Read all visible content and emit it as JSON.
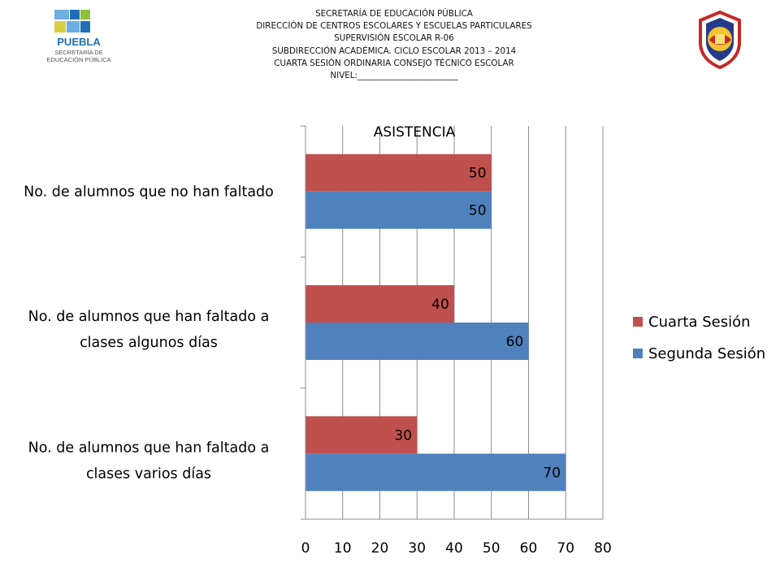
{
  "header": {
    "lines": [
      "SECRETARÍA DE EDUCACIÓN PÚBLICA",
      "DIRECCIÓN DE CENTROS ESCOLARES Y ESCUELAS PARTICULARES",
      "SUPERVISIÓN ESCOLAR R-06",
      "SUBDIRECCIÓN ACADÉMICA. CICLO ESCOLAR 2013 – 2014",
      "CUARTA SESIÓN  ORDINARIA CONSEJO TÉCNICO ESCOLAR",
      "NIVEL:________________________"
    ]
  },
  "logo_left": {
    "text": [
      "PUEBLA",
      "SECRETARÍA DE",
      "EDUCACIÓN PÚBLICA"
    ],
    "colors": [
      "#1f6eb8",
      "#6faee0",
      "#8fbf3c",
      "#d8d040"
    ]
  },
  "logo_right": {
    "colors": [
      "#c62828",
      "#f2c230",
      "#253a8a"
    ]
  },
  "chart_data": {
    "type": "bar",
    "orientation": "horizontal",
    "title": "ASISTENCIA",
    "categories": [
      [
        "No. de alumnos que no han faltado"
      ],
      [
        "No. de alumnos que han faltado a",
        "clases algunos días"
      ],
      [
        "No. de alumnos que han faltado a",
        "clases varios días"
      ]
    ],
    "series": [
      {
        "name": "Cuarta Sesión",
        "color": "#c0504d",
        "values": [
          50,
          40,
          30
        ]
      },
      {
        "name": "Segunda Sesión",
        "color": "#4f81bd",
        "values": [
          50,
          60,
          70
        ]
      }
    ],
    "xlim": [
      0,
      80
    ],
    "xticks": [
      0,
      10,
      20,
      30,
      40,
      50,
      60,
      70,
      80
    ],
    "grid": true,
    "legend_position": "right"
  }
}
